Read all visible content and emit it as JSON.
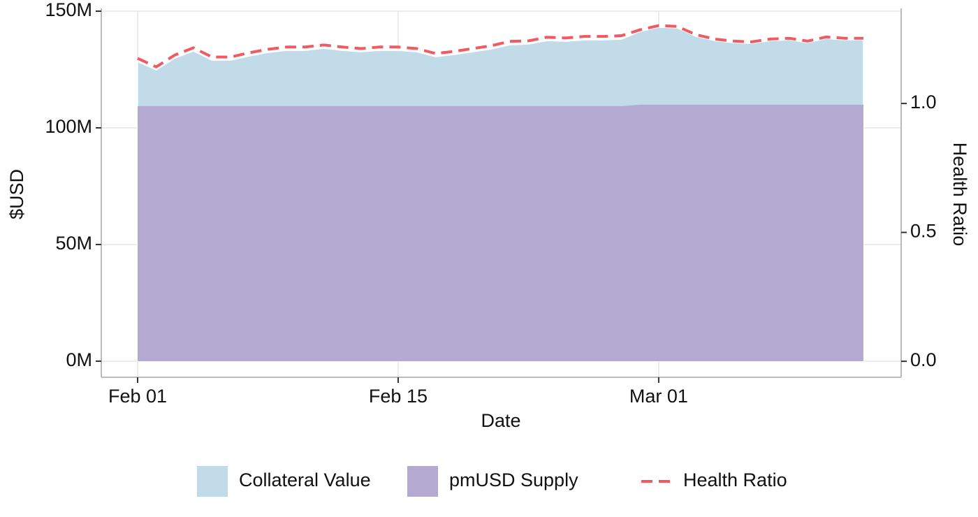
{
  "chart_data": {
    "type": "area",
    "x_label": "Date",
    "y_label": "$USD",
    "y2_label": "Health Ratio",
    "x": [
      "Feb 01",
      "Feb 02",
      "Feb 03",
      "Feb 04",
      "Feb 05",
      "Feb 06",
      "Feb 07",
      "Feb 08",
      "Feb 09",
      "Feb 10",
      "Feb 11",
      "Feb 12",
      "Feb 13",
      "Feb 14",
      "Feb 15",
      "Feb 16",
      "Feb 17",
      "Feb 18",
      "Feb 19",
      "Feb 20",
      "Feb 21",
      "Feb 22",
      "Feb 23",
      "Feb 24",
      "Feb 25",
      "Feb 26",
      "Feb 27",
      "Feb 28",
      "Mar 01",
      "Mar 02",
      "Mar 03",
      "Mar 04",
      "Mar 05",
      "Mar 06",
      "Mar 07",
      "Mar 08",
      "Mar 09",
      "Mar 10",
      "Mar 11",
      "Mar 12"
    ],
    "xticks": [
      "Feb 01",
      "Feb 15",
      "Mar 01"
    ],
    "ylim": [
      -6900000,
      150000000
    ],
    "yticks": [
      {
        "value": 0,
        "label": "0M"
      },
      {
        "value": 50000000,
        "label": "50M"
      },
      {
        "value": 100000000,
        "label": "100M"
      },
      {
        "value": 150000000,
        "label": "150M"
      }
    ],
    "y2lim": [
      -0.062,
      1.358
    ],
    "y2ticks": [
      {
        "value": 0,
        "label": "0.0"
      },
      0.5,
      {
        "value": 1,
        "label": "1.0"
      }
    ],
    "grid": true,
    "legend": "bottom",
    "series": [
      {
        "name": "Collateral Value",
        "type": "area",
        "color": "#c2dbe9",
        "values": [
          128400000,
          124800000,
          129900000,
          132900000,
          129000000,
          129000000,
          130800000,
          132300000,
          133200000,
          133200000,
          134100000,
          133200000,
          132600000,
          133200000,
          133200000,
          132600000,
          130500000,
          131400000,
          132600000,
          133800000,
          135600000,
          135900000,
          137400000,
          137100000,
          137700000,
          137700000,
          138000000,
          141300000,
          143100000,
          142800000,
          139200000,
          137400000,
          136500000,
          136200000,
          137400000,
          137700000,
          136500000,
          138300000,
          137700000,
          137700000
        ]
      },
      {
        "name": "pmUSD Supply",
        "type": "area",
        "color": "#b4a9d0",
        "values": [
          109300000,
          109300000,
          109300000,
          109300000,
          109300000,
          109300000,
          109300000,
          109300000,
          109300000,
          109300000,
          109300000,
          109300000,
          109300000,
          109300000,
          109300000,
          109300000,
          109300000,
          109300000,
          109300000,
          109300000,
          109300000,
          109300000,
          109300000,
          109300000,
          109300000,
          109300000,
          109300000,
          109900000,
          109900000,
          109900000,
          109900000,
          109900000,
          109900000,
          109900000,
          109900000,
          109900000,
          109900000,
          109900000,
          109900000,
          109900000
        ]
      },
      {
        "name": "Health Ratio",
        "type": "line",
        "axis": "y2",
        "color": "#f05a60",
        "values": [
          1.175,
          1.142,
          1.188,
          1.216,
          1.18,
          1.18,
          1.197,
          1.21,
          1.219,
          1.219,
          1.227,
          1.219,
          1.213,
          1.219,
          1.219,
          1.213,
          1.194,
          1.202,
          1.213,
          1.224,
          1.241,
          1.243,
          1.257,
          1.254,
          1.26,
          1.26,
          1.263,
          1.286,
          1.302,
          1.299,
          1.267,
          1.25,
          1.242,
          1.239,
          1.25,
          1.253,
          1.242,
          1.258,
          1.253,
          1.253
        ]
      }
    ]
  }
}
